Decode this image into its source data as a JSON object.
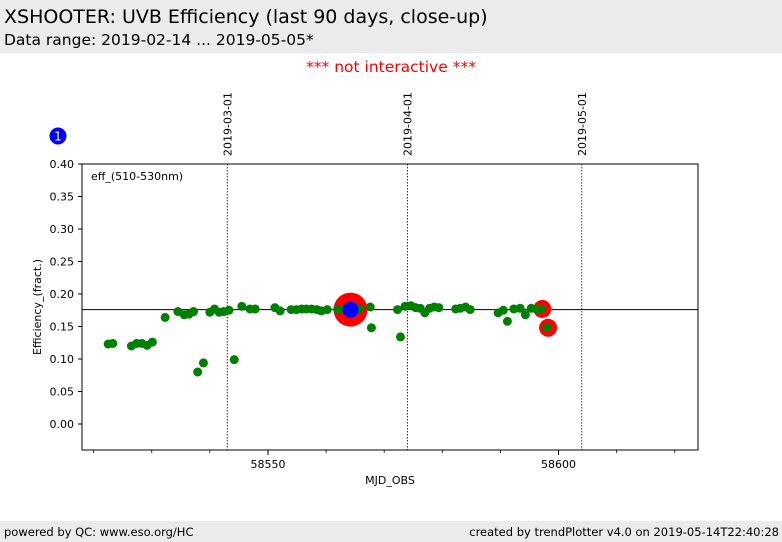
{
  "header": {
    "title": "XSHOOTER: UVB Efficiency (last 90 days, close-up)",
    "subtitle": "Data range: 2019-02-14 ... 2019-05-05*"
  },
  "notice": "*** not interactive ***",
  "footer": {
    "left": "powered by QC: www.eso.org/HC",
    "right": "created by trendPlotter v4.0 on 2019-05-14T22:40:28"
  },
  "colors": {
    "points": "#008000",
    "highlight_outer": "#ff0000",
    "highlight_inner": "#0000ff",
    "notice": "#ff0000"
  },
  "chart_data": {
    "type": "scatter",
    "badge": "1",
    "annotation": "eff_(510-530nm)",
    "xlabel": "MJD_OBS",
    "ylabel": "Efficiency_(fract.)",
    "xlim": [
      58518,
      58624
    ],
    "ylim": [
      -0.04,
      0.4
    ],
    "x_ticks": [
      58550,
      58600
    ],
    "y_ticks": [
      0.0,
      0.05,
      0.1,
      0.15,
      0.2,
      0.25,
      0.3,
      0.35,
      0.4
    ],
    "y_tick_labels": [
      "0.00",
      "0.05",
      "0.10",
      "0.15",
      "0.20",
      "0.25",
      "0.30",
      "0.35",
      "0.40"
    ],
    "reference_line_y": 0.176,
    "date_markers": [
      {
        "label": "2019-03-01",
        "x": 58543
      },
      {
        "label": "2019-04-01",
        "x": 58574
      },
      {
        "label": "2019-05-01",
        "x": 58604
      }
    ],
    "points": [
      {
        "x": 58522.5,
        "y": 0.123
      },
      {
        "x": 58523.3,
        "y": 0.124
      },
      {
        "x": 58526.5,
        "y": 0.12
      },
      {
        "x": 58527.4,
        "y": 0.124
      },
      {
        "x": 58528.3,
        "y": 0.124
      },
      {
        "x": 58529.2,
        "y": 0.121
      },
      {
        "x": 58530.1,
        "y": 0.126
      },
      {
        "x": 58532.3,
        "y": 0.164
      },
      {
        "x": 58534.5,
        "y": 0.173
      },
      {
        "x": 58535.6,
        "y": 0.168
      },
      {
        "x": 58536.4,
        "y": 0.169
      },
      {
        "x": 58537.2,
        "y": 0.173
      },
      {
        "x": 58537.9,
        "y": 0.08
      },
      {
        "x": 58538.9,
        "y": 0.094
      },
      {
        "x": 58540.0,
        "y": 0.172
      },
      {
        "x": 58540.8,
        "y": 0.177
      },
      {
        "x": 58541.6,
        "y": 0.172
      },
      {
        "x": 58542.4,
        "y": 0.173
      },
      {
        "x": 58543.3,
        "y": 0.175
      },
      {
        "x": 58544.2,
        "y": 0.099
      },
      {
        "x": 58545.5,
        "y": 0.181
      },
      {
        "x": 58546.9,
        "y": 0.177
      },
      {
        "x": 58547.8,
        "y": 0.177
      },
      {
        "x": 58551.2,
        "y": 0.179
      },
      {
        "x": 58552.1,
        "y": 0.174
      },
      {
        "x": 58554.0,
        "y": 0.176
      },
      {
        "x": 58554.9,
        "y": 0.176
      },
      {
        "x": 58555.8,
        "y": 0.177
      },
      {
        "x": 58556.6,
        "y": 0.177
      },
      {
        "x": 58557.5,
        "y": 0.177
      },
      {
        "x": 58558.4,
        "y": 0.176
      },
      {
        "x": 58559.2,
        "y": 0.174
      },
      {
        "x": 58560.2,
        "y": 0.176
      },
      {
        "x": 58562.0,
        "y": 0.176
      },
      {
        "x": 58563.3,
        "y": 0.177
      },
      {
        "x": 58565.7,
        "y": 0.177
      },
      {
        "x": 58567.6,
        "y": 0.18
      },
      {
        "x": 58567.8,
        "y": 0.148
      },
      {
        "x": 58572.3,
        "y": 0.176
      },
      {
        "x": 58572.8,
        "y": 0.134
      },
      {
        "x": 58573.6,
        "y": 0.181
      },
      {
        "x": 58574.6,
        "y": 0.182
      },
      {
        "x": 58575.4,
        "y": 0.179
      },
      {
        "x": 58576.2,
        "y": 0.178
      },
      {
        "x": 58577.0,
        "y": 0.171
      },
      {
        "x": 58577.8,
        "y": 0.178
      },
      {
        "x": 58578.6,
        "y": 0.18
      },
      {
        "x": 58579.4,
        "y": 0.179
      },
      {
        "x": 58582.3,
        "y": 0.177
      },
      {
        "x": 58583.1,
        "y": 0.178
      },
      {
        "x": 58584.0,
        "y": 0.18
      },
      {
        "x": 58584.8,
        "y": 0.176
      },
      {
        "x": 58589.6,
        "y": 0.171
      },
      {
        "x": 58590.5,
        "y": 0.175
      },
      {
        "x": 58591.2,
        "y": 0.158
      },
      {
        "x": 58592.3,
        "y": 0.177
      },
      {
        "x": 58593.4,
        "y": 0.178
      },
      {
        "x": 58594.3,
        "y": 0.168
      },
      {
        "x": 58595.3,
        "y": 0.178
      },
      {
        "x": 58596.2,
        "y": 0.177
      },
      {
        "x": 58597.0,
        "y": 0.177
      },
      {
        "x": 58598.0,
        "y": 0.148
      }
    ],
    "highlights": [
      {
        "x": 58564.2,
        "y": 0.176,
        "outer_r": 17,
        "inner_r": 8,
        "inner": true
      },
      {
        "x": 58597.2,
        "y": 0.177,
        "outer_r": 9,
        "inner_r": 0,
        "inner": false
      },
      {
        "x": 58598.2,
        "y": 0.148,
        "outer_r": 9,
        "inner_r": 0,
        "inner": false
      }
    ]
  }
}
